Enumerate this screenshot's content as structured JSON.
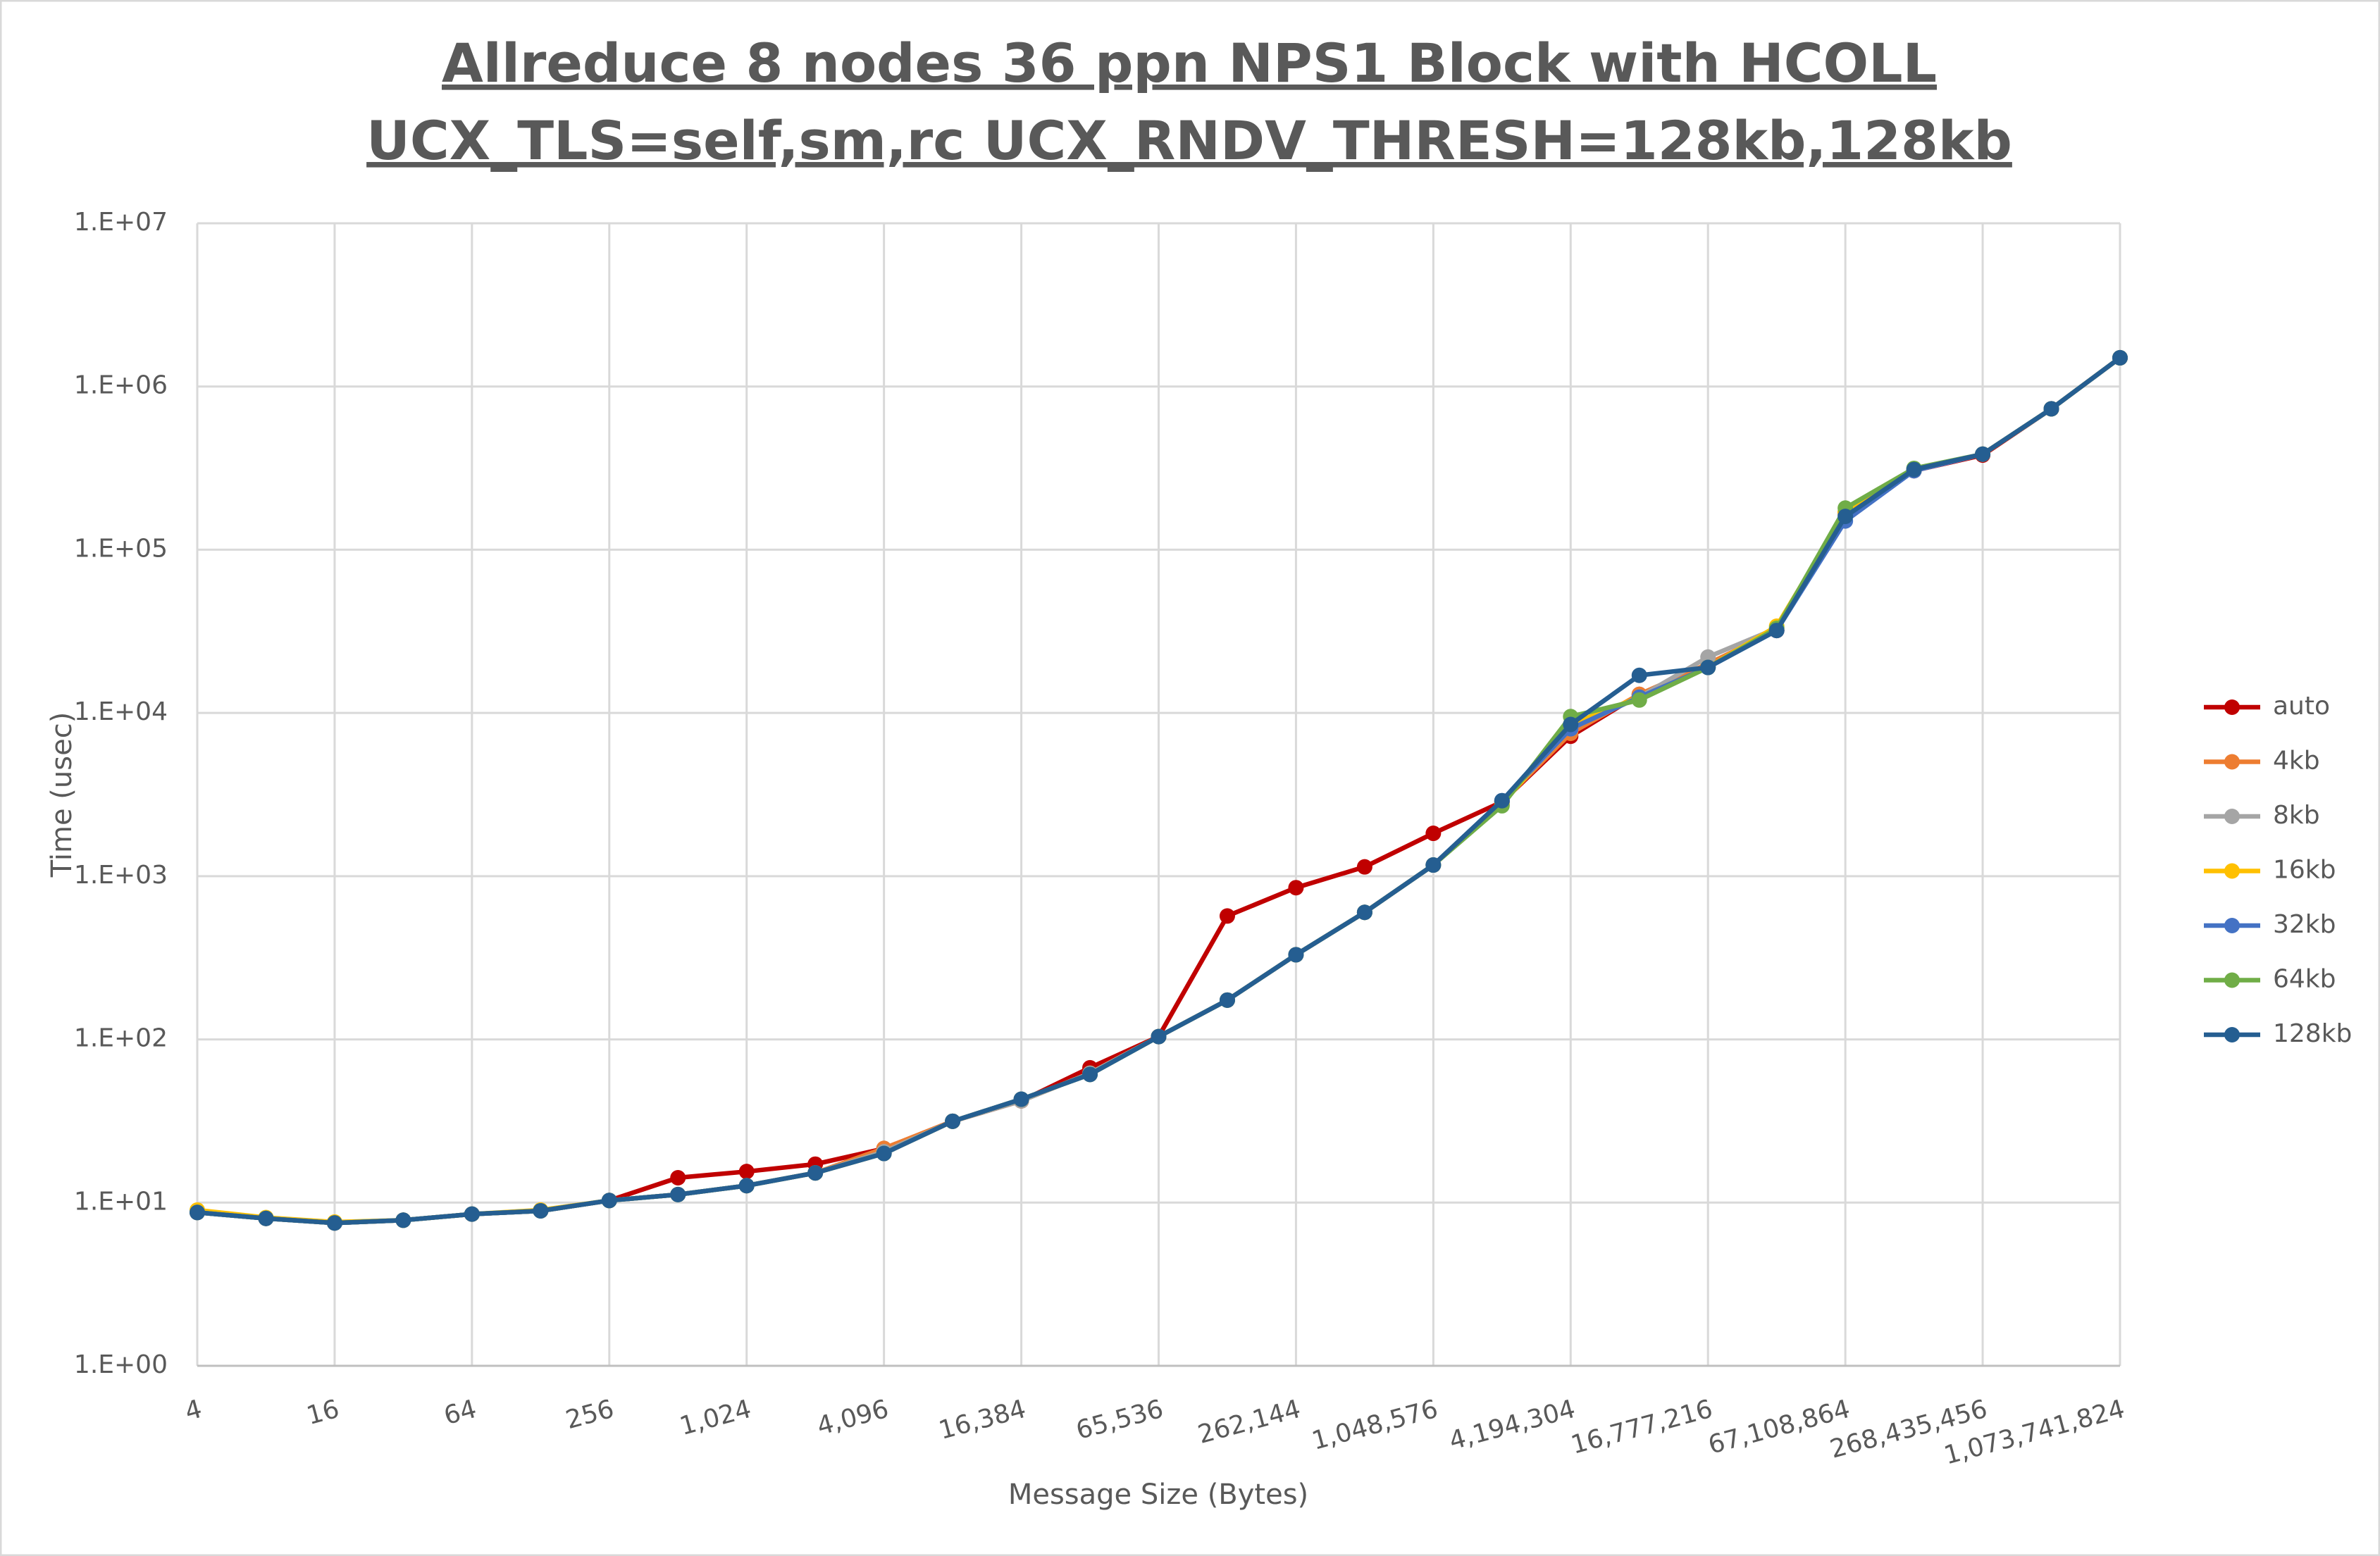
{
  "chart_data": {
    "type": "line",
    "title": "Allreduce 8 nodes 36 ppn NPS1 Block with HCOLL",
    "subtitle": "UCX_TLS=self,sm,rc UCX_RNDV_THRESH=128kb,128kb",
    "x_label": "Message Size (Bytes)",
    "y_label": "Time (usec)",
    "x_scale": "log",
    "y_scale": "log",
    "grid": true,
    "legend": "right",
    "x": [
      4,
      8,
      16,
      32,
      64,
      128,
      256,
      512,
      1024,
      2048,
      4096,
      8192,
      16384,
      32768,
      65536,
      131072,
      262144,
      524288,
      1048576,
      2097152,
      4194304,
      8388608,
      16777216,
      33554432,
      67108864,
      134217728,
      268435456,
      536870912,
      1073741824
    ],
    "xlim": [
      4,
      1073741824
    ],
    "xticks": [
      4,
      16,
      64,
      256,
      {
        "value": 1024,
        "label": "1,024"
      },
      {
        "value": 4096,
        "label": "4,096"
      },
      {
        "value": 16384,
        "label": "16,384"
      },
      {
        "value": 65536,
        "label": "65,536"
      },
      {
        "value": 262144,
        "label": "262,144"
      },
      {
        "value": 1048576,
        "label": "1,048,576"
      },
      {
        "value": 4194304,
        "label": "4,194,304"
      },
      {
        "value": 16777216,
        "label": "16,777,216"
      },
      {
        "value": 67108864,
        "label": "67,108,864"
      },
      {
        "value": 268435456,
        "label": "268,435,456"
      },
      {
        "value": 1073741824,
        "label": "1,073,741,824"
      }
    ],
    "ylim": [
      1,
      10000000
    ],
    "yticks": [
      {
        "value": 1,
        "label": "1.E+00"
      },
      {
        "value": 10,
        "label": "1.E+01"
      },
      {
        "value": 100,
        "label": "1.E+02"
      },
      {
        "value": 1000,
        "label": "1.E+03"
      },
      {
        "value": 10000,
        "label": "1.E+04"
      },
      {
        "value": 100000,
        "label": "1.E+05"
      },
      {
        "value": 1000000,
        "label": "1.E+06"
      },
      {
        "value": 10000000,
        "label": "1.E+07"
      }
    ],
    "series": [
      {
        "name": "auto",
        "color": "#c00000",
        "values": [
          8.7,
          8.0,
          7.5,
          7.8,
          8.5,
          8.9,
          10.3,
          14.2,
          15.5,
          17.2,
          21.4,
          31.5,
          42,
          67,
          104,
          570,
          850,
          1140,
          1830,
          2850,
          7200,
          13000,
          19500,
          32000,
          170000,
          305000,
          380000,
          730000,
          1500000
        ]
      },
      {
        "name": "4kb",
        "color": "#ed7d31",
        "values": [
          8.7,
          8.0,
          7.5,
          7.8,
          8.5,
          8.9,
          10.3,
          11.2,
          12.7,
          15.2,
          21.5,
          31.5,
          42,
          62,
          104,
          174,
          330,
          600,
          1170,
          2850,
          7500,
          13000,
          20000,
          32000,
          165000,
          305000,
          385000,
          730000,
          1500000
        ]
      },
      {
        "name": "8kb",
        "color": "#a5a5a5",
        "values": [
          8.7,
          8.0,
          7.5,
          7.8,
          8.5,
          8.9,
          10.3,
          11.2,
          12.7,
          15.2,
          20.5,
          31.5,
          42,
          62,
          104,
          174,
          330,
          600,
          1170,
          2850,
          8000,
          12500,
          22000,
          33000,
          165000,
          305000,
          385000,
          730000,
          1500000
        ]
      },
      {
        "name": "16kb",
        "color": "#ffc000",
        "values": [
          9.0,
          8.1,
          7.6,
          7.8,
          8.5,
          9.0,
          10.3,
          11.2,
          12.7,
          15.2,
          20,
          31.5,
          43,
          61,
          104,
          174,
          330,
          600,
          1170,
          2750,
          8500,
          12500,
          19000,
          34000,
          170000,
          310000,
          385000,
          730000,
          1500000
        ]
      },
      {
        "name": "32kb",
        "color": "#4472c4",
        "values": [
          8.7,
          8.0,
          7.5,
          7.8,
          8.5,
          8.9,
          10.3,
          11.2,
          12.7,
          15.2,
          20,
          31.5,
          43,
          61,
          104,
          174,
          330,
          600,
          1170,
          2900,
          8000,
          12500,
          19000,
          32000,
          150000,
          305000,
          385000,
          730000,
          1500000
        ]
      },
      {
        "name": "64kb",
        "color": "#70ad47",
        "values": [
          8.7,
          8.0,
          7.5,
          7.8,
          8.5,
          8.9,
          10.3,
          11.2,
          12.7,
          15.2,
          20,
          31.5,
          43,
          61,
          104,
          174,
          330,
          600,
          1170,
          2700,
          9500,
          12000,
          19000,
          33000,
          180000,
          315000,
          385000,
          730000,
          1500000
        ]
      },
      {
        "name": "128kb",
        "color": "#255e91",
        "values": [
          8.7,
          8.0,
          7.5,
          7.8,
          8.5,
          8.9,
          10.3,
          11.2,
          12.7,
          15.2,
          20,
          31.5,
          43,
          61,
          104,
          174,
          330,
          600,
          1170,
          2900,
          8500,
          17000,
          19000,
          32000,
          160000,
          310000,
          385000,
          730000,
          1500000
        ]
      }
    ]
  }
}
